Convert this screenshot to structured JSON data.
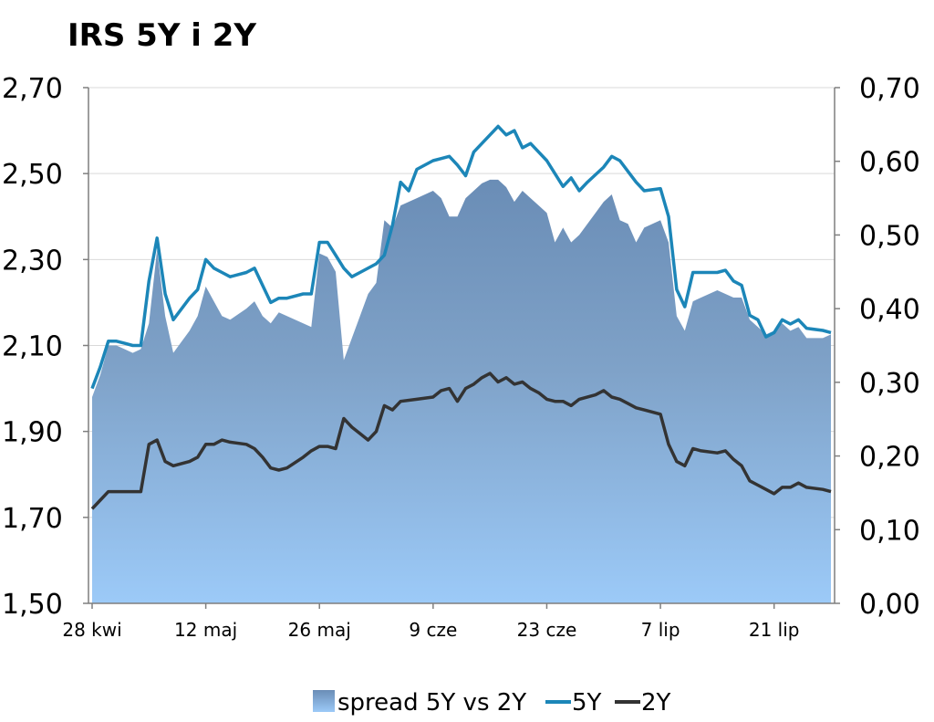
{
  "chart_data": {
    "type": "area+line",
    "title": "IRS 5Y i 2Y",
    "left_axis": {
      "ylim": [
        1.5,
        2.7
      ],
      "ticks": [
        "1,50",
        "1,70",
        "1,90",
        "2,10",
        "2,30",
        "2,50",
        "2,70"
      ],
      "tick_values": [
        1.5,
        1.7,
        1.9,
        2.1,
        2.3,
        2.5,
        2.7
      ]
    },
    "right_axis": {
      "ylim": [
        0.0,
        0.7
      ],
      "ticks": [
        "0,00",
        "0,10",
        "0,20",
        "0,30",
        "0,40",
        "0,50",
        "0,60",
        "0,70"
      ],
      "tick_values": [
        0.0,
        0.1,
        0.2,
        0.3,
        0.4,
        0.5,
        0.6,
        0.7
      ]
    },
    "x_axis": {
      "n_days": 92,
      "tick_labels": [
        "28 kwi",
        "12 maj",
        "26 maj",
        "9 cze",
        "23 cze",
        "7 lip",
        "21 lip"
      ],
      "tick_day_index": [
        0,
        14,
        28,
        42,
        56,
        70,
        84
      ]
    },
    "legend": [
      "spread 5Y vs 2Y",
      "5Y",
      "2Y"
    ],
    "colors": {
      "five_y": "#1c86b8",
      "two_y": "#333333",
      "spread_top": "#6a8db6",
      "spread_bottom": "#9ccaf8",
      "grid": "#d9d9d9",
      "axis": "#7f7f7f"
    },
    "series": [
      {
        "name": "5Y",
        "axis": "left",
        "points": [
          [
            0,
            2.0
          ],
          [
            1,
            2.05
          ],
          [
            2,
            2.11
          ],
          [
            3,
            2.11
          ],
          [
            4,
            2.105
          ],
          [
            5,
            2.1
          ],
          [
            6,
            2.1
          ],
          [
            7,
            2.25
          ],
          [
            8,
            2.35
          ],
          [
            9,
            2.22
          ],
          [
            10,
            2.16
          ],
          [
            12,
            2.21
          ],
          [
            13,
            2.23
          ],
          [
            14,
            2.3
          ],
          [
            15,
            2.28
          ],
          [
            16,
            2.27
          ],
          [
            17,
            2.26
          ],
          [
            19,
            2.27
          ],
          [
            20,
            2.28
          ],
          [
            21,
            2.24
          ],
          [
            22,
            2.2
          ],
          [
            23,
            2.21
          ],
          [
            24,
            2.21
          ],
          [
            26,
            2.22
          ],
          [
            27,
            2.22
          ],
          [
            28,
            2.34
          ],
          [
            29,
            2.34
          ],
          [
            30,
            2.31
          ],
          [
            31,
            2.28
          ],
          [
            32,
            2.26
          ],
          [
            33,
            2.27
          ],
          [
            35,
            2.29
          ],
          [
            36,
            2.31
          ],
          [
            37,
            2.38
          ],
          [
            38,
            2.48
          ],
          [
            39,
            2.46
          ],
          [
            40,
            2.51
          ],
          [
            42,
            2.53
          ],
          [
            43,
            2.535
          ],
          [
            44,
            2.54
          ],
          [
            45,
            2.52
          ],
          [
            46,
            2.495
          ],
          [
            47,
            2.55
          ],
          [
            49,
            2.59
          ],
          [
            50,
            2.61
          ],
          [
            51,
            2.59
          ],
          [
            52,
            2.6
          ],
          [
            53,
            2.56
          ],
          [
            54,
            2.57
          ],
          [
            55,
            2.55
          ],
          [
            56,
            2.53
          ],
          [
            57,
            2.5
          ],
          [
            58,
            2.47
          ],
          [
            59,
            2.49
          ],
          [
            60,
            2.46
          ],
          [
            61,
            2.48
          ],
          [
            63,
            2.515
          ],
          [
            64,
            2.54
          ],
          [
            65,
            2.53
          ],
          [
            66,
            2.505
          ],
          [
            67,
            2.48
          ],
          [
            68,
            2.46
          ],
          [
            70,
            2.465
          ],
          [
            71,
            2.4
          ],
          [
            72,
            2.23
          ],
          [
            73,
            2.19
          ],
          [
            74,
            2.27
          ],
          [
            75,
            2.27
          ],
          [
            77,
            2.27
          ],
          [
            78,
            2.275
          ],
          [
            79,
            2.25
          ],
          [
            80,
            2.24
          ],
          [
            81,
            2.17
          ],
          [
            82,
            2.16
          ],
          [
            83,
            2.12
          ],
          [
            84,
            2.13
          ],
          [
            85,
            2.16
          ],
          [
            86,
            2.15
          ],
          [
            87,
            2.16
          ],
          [
            88,
            2.14
          ],
          [
            90,
            2.135
          ],
          [
            91,
            2.13
          ]
        ]
      },
      {
        "name": "2Y",
        "axis": "left",
        "points": [
          [
            0,
            1.72
          ],
          [
            1,
            1.74
          ],
          [
            2,
            1.76
          ],
          [
            3,
            1.76
          ],
          [
            5,
            1.76
          ],
          [
            6,
            1.76
          ],
          [
            7,
            1.87
          ],
          [
            8,
            1.88
          ],
          [
            9,
            1.83
          ],
          [
            10,
            1.82
          ],
          [
            12,
            1.83
          ],
          [
            13,
            1.84
          ],
          [
            14,
            1.87
          ],
          [
            15,
            1.87
          ],
          [
            16,
            1.88
          ],
          [
            17,
            1.875
          ],
          [
            19,
            1.87
          ],
          [
            20,
            1.86
          ],
          [
            21,
            1.84
          ],
          [
            22,
            1.815
          ],
          [
            23,
            1.81
          ],
          [
            24,
            1.815
          ],
          [
            26,
            1.84
          ],
          [
            27,
            1.855
          ],
          [
            28,
            1.865
          ],
          [
            29,
            1.865
          ],
          [
            30,
            1.86
          ],
          [
            31,
            1.93
          ],
          [
            32,
            1.91
          ],
          [
            33,
            1.895
          ],
          [
            34,
            1.88
          ],
          [
            35,
            1.9
          ],
          [
            36,
            1.96
          ],
          [
            37,
            1.95
          ],
          [
            38,
            1.97
          ],
          [
            40,
            1.975
          ],
          [
            42,
            1.98
          ],
          [
            43,
            1.995
          ],
          [
            44,
            2.0
          ],
          [
            45,
            1.97
          ],
          [
            46,
            2.0
          ],
          [
            47,
            2.01
          ],
          [
            48,
            2.025
          ],
          [
            49,
            2.035
          ],
          [
            50,
            2.015
          ],
          [
            51,
            2.025
          ],
          [
            52,
            2.01
          ],
          [
            53,
            2.015
          ],
          [
            54,
            2.0
          ],
          [
            55,
            1.99
          ],
          [
            56,
            1.975
          ],
          [
            57,
            1.97
          ],
          [
            58,
            1.97
          ],
          [
            59,
            1.96
          ],
          [
            60,
            1.975
          ],
          [
            62,
            1.985
          ],
          [
            63,
            1.995
          ],
          [
            64,
            1.98
          ],
          [
            65,
            1.975
          ],
          [
            66,
            1.965
          ],
          [
            67,
            1.955
          ],
          [
            68,
            1.95
          ],
          [
            70,
            1.94
          ],
          [
            71,
            1.87
          ],
          [
            72,
            1.83
          ],
          [
            73,
            1.82
          ],
          [
            74,
            1.86
          ],
          [
            75,
            1.855
          ],
          [
            77,
            1.85
          ],
          [
            78,
            1.855
          ],
          [
            79,
            1.835
          ],
          [
            80,
            1.82
          ],
          [
            81,
            1.785
          ],
          [
            82,
            1.775
          ],
          [
            83,
            1.765
          ],
          [
            84,
            1.755
          ],
          [
            85,
            1.77
          ],
          [
            86,
            1.77
          ],
          [
            87,
            1.78
          ],
          [
            88,
            1.77
          ],
          [
            90,
            1.765
          ],
          [
            91,
            1.76
          ]
        ]
      },
      {
        "name": "spread 5Y vs 2Y",
        "axis": "right",
        "type": "area",
        "points": [
          [
            0,
            0.28
          ],
          [
            1,
            0.31
          ],
          [
            2,
            0.35
          ],
          [
            3,
            0.35
          ],
          [
            4,
            0.345
          ],
          [
            5,
            0.34
          ],
          [
            6,
            0.345
          ],
          [
            7,
            0.38
          ],
          [
            8,
            0.48
          ],
          [
            9,
            0.39
          ],
          [
            10,
            0.34
          ],
          [
            12,
            0.37
          ],
          [
            13,
            0.39
          ],
          [
            14,
            0.43
          ],
          [
            15,
            0.41
          ],
          [
            16,
            0.39
          ],
          [
            17,
            0.385
          ],
          [
            19,
            0.4
          ],
          [
            20,
            0.41
          ],
          [
            21,
            0.39
          ],
          [
            22,
            0.38
          ],
          [
            23,
            0.395
          ],
          [
            24,
            0.39
          ],
          [
            26,
            0.38
          ],
          [
            27,
            0.375
          ],
          [
            28,
            0.475
          ],
          [
            29,
            0.47
          ],
          [
            30,
            0.45
          ],
          [
            31,
            0.33
          ],
          [
            32,
            0.36
          ],
          [
            33,
            0.39
          ],
          [
            34,
            0.42
          ],
          [
            35,
            0.435
          ],
          [
            36,
            0.52
          ],
          [
            37,
            0.51
          ],
          [
            38,
            0.54
          ],
          [
            40,
            0.55
          ],
          [
            42,
            0.56
          ],
          [
            43,
            0.55
          ],
          [
            44,
            0.525
          ],
          [
            45,
            0.525
          ],
          [
            46,
            0.55
          ],
          [
            47,
            0.56
          ],
          [
            48,
            0.57
          ],
          [
            49,
            0.575
          ],
          [
            50,
            0.575
          ],
          [
            51,
            0.565
          ],
          [
            52,
            0.545
          ],
          [
            53,
            0.56
          ],
          [
            54,
            0.55
          ],
          [
            55,
            0.54
          ],
          [
            56,
            0.53
          ],
          [
            57,
            0.49
          ],
          [
            58,
            0.51
          ],
          [
            59,
            0.49
          ],
          [
            60,
            0.5
          ],
          [
            62,
            0.53
          ],
          [
            63,
            0.545
          ],
          [
            64,
            0.555
          ],
          [
            65,
            0.52
          ],
          [
            66,
            0.515
          ],
          [
            67,
            0.49
          ],
          [
            68,
            0.51
          ],
          [
            70,
            0.52
          ],
          [
            71,
            0.49
          ],
          [
            72,
            0.39
          ],
          [
            73,
            0.37
          ],
          [
            74,
            0.41
          ],
          [
            75,
            0.415
          ],
          [
            77,
            0.425
          ],
          [
            78,
            0.42
          ],
          [
            79,
            0.415
          ],
          [
            80,
            0.415
          ],
          [
            81,
            0.385
          ],
          [
            82,
            0.375
          ],
          [
            83,
            0.365
          ],
          [
            84,
            0.37
          ],
          [
            85,
            0.38
          ],
          [
            86,
            0.37
          ],
          [
            87,
            0.375
          ],
          [
            88,
            0.36
          ],
          [
            90,
            0.36
          ],
          [
            91,
            0.365
          ]
        ]
      }
    ]
  }
}
